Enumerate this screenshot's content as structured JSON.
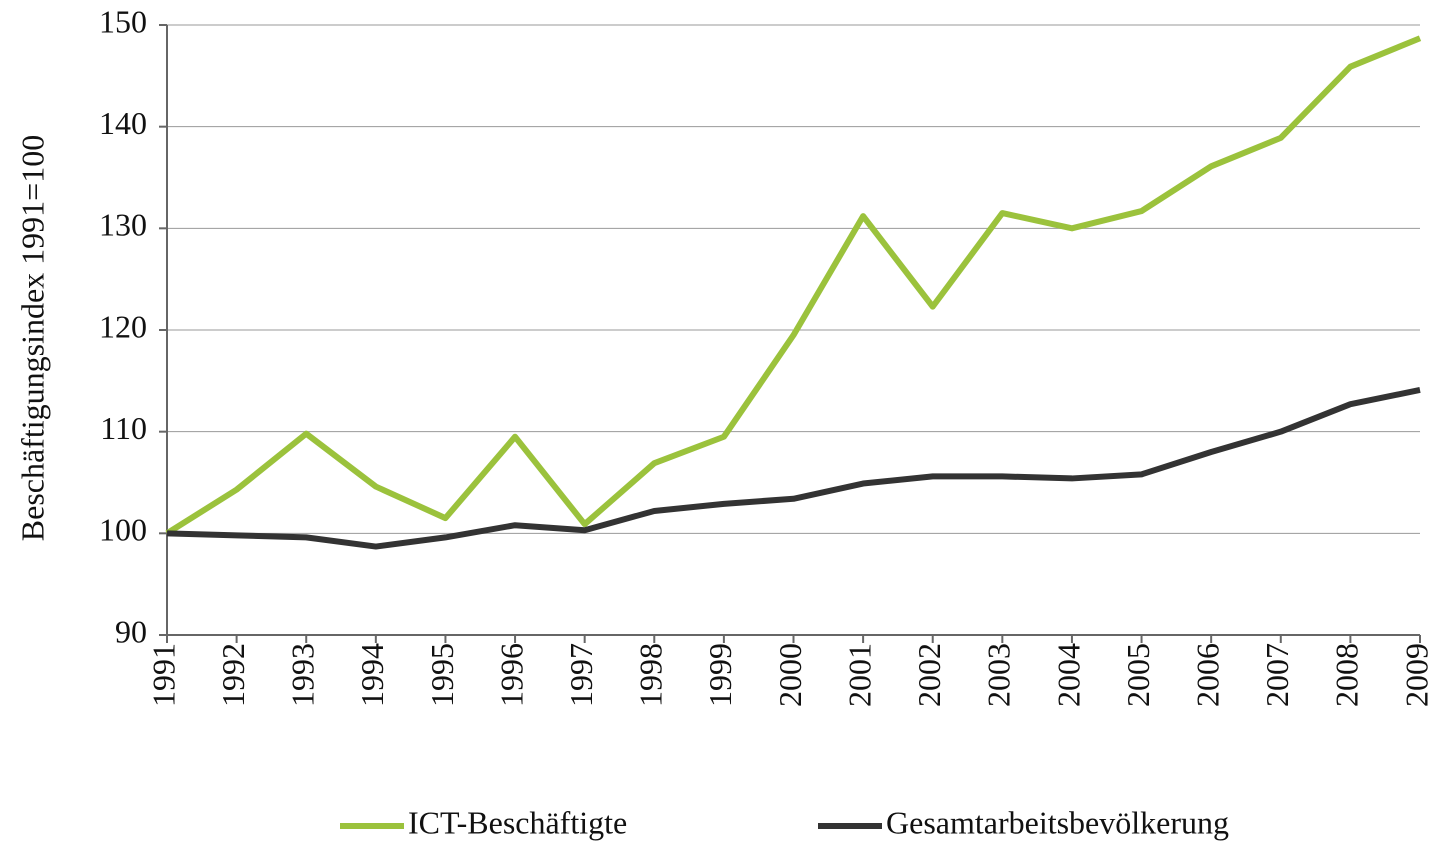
{
  "chart_data": {
    "type": "line",
    "y_label": "Beschäftigungsindex 1991=100",
    "x": [
      1991,
      1992,
      1993,
      1994,
      1995,
      1996,
      1997,
      1998,
      1999,
      2000,
      2001,
      2002,
      2003,
      2004,
      2005,
      2006,
      2007,
      2008,
      2009
    ],
    "series": [
      {
        "name": "ICT-Beschäftigte",
        "color": "#9bc23c",
        "values": [
          100,
          104.3,
          109.8,
          104.6,
          101.5,
          109.5,
          100.9,
          106.9,
          109.5,
          119.5,
          131.2,
          122.3,
          131.5,
          130.0,
          131.7,
          136.1,
          138.9,
          145.9,
          148.7
        ]
      },
      {
        "name": "Gesamtarbeitsbevölkerung",
        "color": "#333333",
        "values": [
          100,
          99.8,
          99.6,
          98.7,
          99.6,
          100.8,
          100.3,
          102.2,
          102.9,
          103.4,
          104.9,
          105.6,
          105.6,
          105.4,
          105.8,
          108.0,
          110.0,
          112.7,
          114.1
        ]
      }
    ],
    "xlim": [
      1991,
      2009
    ],
    "xticks": [
      1991,
      1992,
      1993,
      1994,
      1995,
      1996,
      1997,
      1998,
      1999,
      2000,
      2001,
      2002,
      2003,
      2004,
      2005,
      2006,
      2007,
      2008,
      2009
    ],
    "ylim": [
      90,
      150
    ],
    "yticks": [
      90,
      100,
      110,
      120,
      130,
      140,
      150
    ],
    "grid": true,
    "legend": "bottom"
  }
}
